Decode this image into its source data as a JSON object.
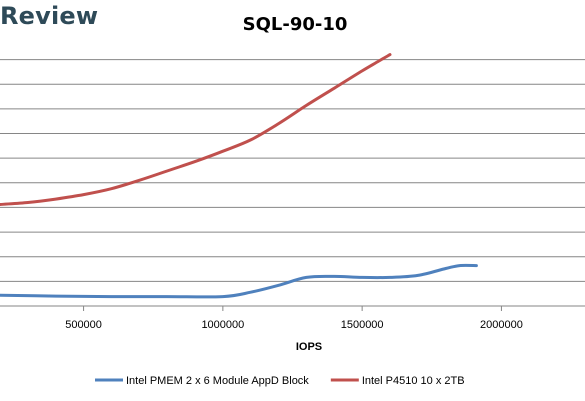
{
  "header": {
    "brand": "Review"
  },
  "chart_data": {
    "type": "line",
    "title": "SQL-90-10",
    "xlabel": "IOPS",
    "ylabel": "",
    "xlim": [
      200000,
      2300000
    ],
    "ylim": [
      0,
      5.6
    ],
    "xticks": [
      500000,
      1000000,
      1500000,
      2000000
    ],
    "xtick_labels": [
      "500000",
      "1000000",
      "1500000",
      "2000000"
    ],
    "gridlines": [
      0.5,
      1.0,
      1.5,
      2.0,
      2.5,
      3.0,
      3.5,
      4.0,
      4.5,
      5.0
    ],
    "grid": true,
    "legend_position": "bottom",
    "series": [
      {
        "name": "Intel PMEM 2 x 6 Module AppD Block",
        "color": "#4f81bd",
        "x": [
          200000,
          400000,
          600000,
          800000,
          1000000,
          1100000,
          1200000,
          1300000,
          1400000,
          1500000,
          1600000,
          1700000,
          1800000,
          1850000,
          1910000
        ],
        "y": [
          0.22,
          0.2,
          0.19,
          0.19,
          0.19,
          0.28,
          0.42,
          0.58,
          0.6,
          0.58,
          0.58,
          0.62,
          0.76,
          0.82,
          0.82
        ]
      },
      {
        "name": "Intel P4510 10 x 2TB",
        "color": "#c0504d",
        "x": [
          200000,
          300000,
          400000,
          500000,
          600000,
          700000,
          800000,
          900000,
          1000000,
          1100000,
          1200000,
          1300000,
          1400000,
          1500000,
          1560000,
          1600000
        ],
        "y": [
          2.06,
          2.1,
          2.17,
          2.26,
          2.38,
          2.55,
          2.74,
          2.93,
          3.14,
          3.37,
          3.7,
          4.07,
          4.42,
          4.77,
          4.97,
          5.1
        ]
      }
    ]
  }
}
